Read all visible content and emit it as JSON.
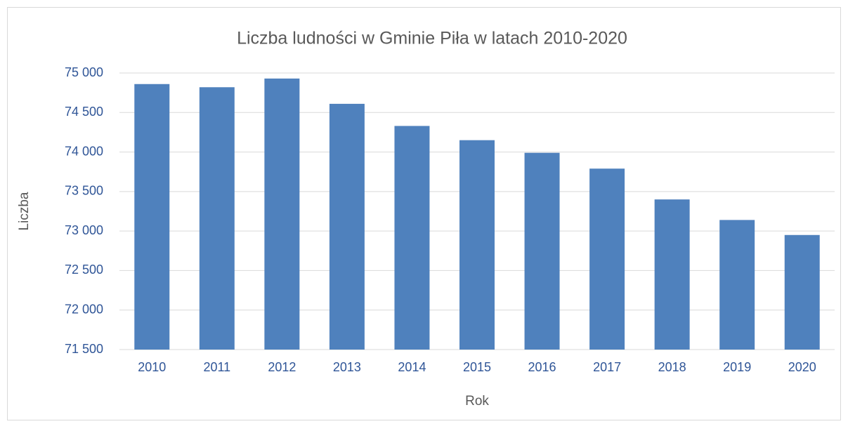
{
  "chart_data": {
    "type": "bar",
    "title": "Liczba ludności w Gminie Piła w latach 2010-2020",
    "x_label": "Rok",
    "y_label": "Liczba",
    "categories": [
      "2010",
      "2011",
      "2012",
      "2013",
      "2014",
      "2015",
      "2016",
      "2017",
      "2018",
      "2019",
      "2020"
    ],
    "values": [
      74860,
      74820,
      74930,
      74610,
      74330,
      74150,
      73990,
      73790,
      73400,
      73140,
      72950
    ],
    "color": "#4f81bd",
    "ylim": [
      71500,
      75000
    ],
    "yticks": [
      {
        "value": 71500,
        "label": "71 500"
      },
      {
        "value": 72000,
        "label": "72 000"
      },
      {
        "value": 72500,
        "label": "72 500"
      },
      {
        "value": 73000,
        "label": "73 000"
      },
      {
        "value": 73500,
        "label": "73 500"
      },
      {
        "value": 74000,
        "label": "74 000"
      },
      {
        "value": 74500,
        "label": "74 500"
      },
      {
        "value": 75000,
        "label": "75 000"
      }
    ],
    "grid": true
  }
}
